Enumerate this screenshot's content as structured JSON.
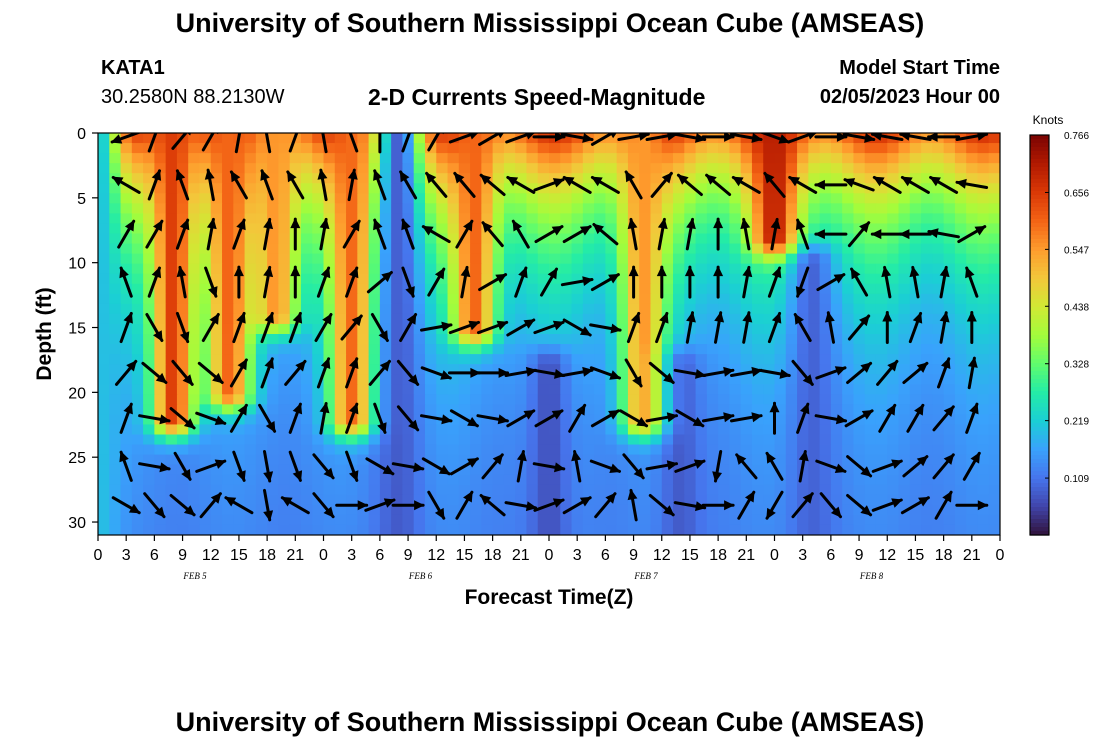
{
  "header": {
    "title": "University of Southern Mississippi Ocean Cube (AMSEAS)",
    "station_id": "KATA1",
    "station_coords": "30.2580N  88.2130W",
    "plot_title": "2-D Currents Speed-Magnitude",
    "model_start_label": "Model Start Time",
    "model_start_value": "02/05/2023 Hour 00"
  },
  "footer": {
    "title": "University of Southern Mississippi Ocean Cube (AMSEAS)"
  },
  "chart_data": {
    "type": "heatmap",
    "xlabel": "Forecast Time(Z)",
    "ylabel": "Depth (ft)",
    "xlim": [
      0,
      96
    ],
    "ylim": [
      31,
      0
    ],
    "x_tick_labels": [
      "0",
      "3",
      "6",
      "9",
      "12",
      "15",
      "18",
      "21",
      "0",
      "3",
      "6",
      "9",
      "12",
      "15",
      "18",
      "21",
      "0",
      "3",
      "6",
      "9",
      "12",
      "15",
      "18",
      "21",
      "0",
      "3",
      "6",
      "9",
      "12",
      "15",
      "18",
      "21",
      "0"
    ],
    "y_ticks": [
      0,
      5,
      10,
      15,
      20,
      25,
      30
    ],
    "y_tick_labels": [
      "0",
      "5",
      "10",
      "15",
      "20",
      "25",
      "30"
    ],
    "day_labels": [
      {
        "label": "FEB 5",
        "hour": 10
      },
      {
        "label": "FEB 6",
        "hour": 34
      },
      {
        "label": "FEB 7",
        "hour": 58
      },
      {
        "label": "FEB 8",
        "hour": 82
      }
    ],
    "colorbar": {
      "title": "Knots",
      "min": 0.0,
      "max": 0.766,
      "tick_values": [
        0.766,
        0.656,
        0.547,
        0.438,
        0.328,
        0.219,
        0.109
      ],
      "tick_labels": [
        "0.766",
        "0.656",
        "0.547",
        "0.438",
        "0.328",
        "0.219",
        "0.109"
      ],
      "colors": [
        "#30123b",
        "#4145ab",
        "#4675ed",
        "#39a2fc",
        "#1bcfd4",
        "#24eca6",
        "#61fc6c",
        "#a4fc3b",
        "#d1e834",
        "#f3c63a",
        "#fe9b2d",
        "#f36315",
        "#d93806",
        "#b11901",
        "#7a0402"
      ]
    },
    "speed_features": [
      {
        "hour": 0,
        "depth_from": 0,
        "depth_to": 31,
        "speed": 0.2
      },
      {
        "hour": 8,
        "depth_from": 0,
        "depth_to": 22,
        "speed": 0.65
      },
      {
        "hour": 14,
        "depth_from": 0,
        "depth_to": 20,
        "speed": 0.6
      },
      {
        "hour": 19,
        "depth_from": 0,
        "depth_to": 14,
        "speed": 0.55
      },
      {
        "hour": 27,
        "depth_from": 0,
        "depth_to": 22,
        "speed": 0.6
      },
      {
        "hour": 32,
        "depth_from": 0,
        "depth_to": 31,
        "speed": 0.08
      },
      {
        "hour": 40,
        "depth_from": 0,
        "depth_to": 15,
        "speed": 0.6
      },
      {
        "hour": 58,
        "depth_from": 0,
        "depth_to": 22,
        "speed": 0.55
      },
      {
        "hour": 72,
        "depth_from": 0,
        "depth_to": 8,
        "speed": 0.7
      },
      {
        "hour": 76,
        "depth_from": 10,
        "depth_to": 31,
        "speed": 0.09
      },
      {
        "hour": 62,
        "depth_from": 18,
        "depth_to": 31,
        "speed": 0.08
      },
      {
        "hour": 48,
        "depth_from": 18,
        "depth_to": 31,
        "speed": 0.07
      }
    ],
    "vector_field": {
      "hours": [
        3,
        6,
        9,
        12,
        15,
        18,
        21,
        24,
        27,
        30,
        33,
        36,
        39,
        42,
        45,
        48,
        51,
        54,
        57,
        60,
        63,
        66,
        69,
        72,
        75,
        78,
        81,
        84,
        87,
        90,
        93
      ],
      "depths": [
        0.3,
        4,
        7.8,
        11.5,
        15,
        18.5,
        22,
        25.7,
        28.7
      ],
      "directions_deg": [
        [
          250,
          20,
          40,
          30,
          10,
          350,
          20,
          350,
          340,
          0,
          20,
          30,
          70,
          60,
          70,
          90,
          100,
          60,
          80,
          80,
          100,
          90,
          100,
          110,
          70,
          90,
          100,
          280,
          280,
          270,
          80
        ],
        [
          300,
          20,
          340,
          350,
          330,
          340,
          330,
          350,
          10,
          340,
          330,
          320,
          320,
          310,
          300,
          70,
          300,
          300,
          330,
          40,
          310,
          310,
          300,
          320,
          300,
          270,
          290,
          300,
          300,
          300,
          280
        ],
        [
          30,
          30,
          20,
          10,
          20,
          10,
          360,
          10,
          30,
          340,
          340,
          300,
          30,
          320,
          330,
          60,
          60,
          310,
          350,
          10,
          10,
          0,
          350,
          10,
          340,
          270,
          40,
          270,
          270,
          280,
          60
        ],
        [
          340,
          20,
          350,
          160,
          0,
          10,
          0,
          20,
          20,
          50,
          160,
          30,
          10,
          60,
          20,
          30,
          80,
          60,
          0,
          0,
          0,
          0,
          10,
          20,
          200,
          60,
          330,
          350,
          350,
          10,
          340
        ],
        [
          20,
          150,
          160,
          30,
          20,
          20,
          20,
          30,
          40,
          150,
          30,
          80,
          70,
          70,
          60,
          70,
          120,
          100,
          20,
          20,
          10,
          10,
          10,
          20,
          330,
          350,
          40,
          0,
          20,
          10,
          0
        ],
        [
          40,
          130,
          140,
          130,
          30,
          20,
          40,
          20,
          20,
          40,
          140,
          110,
          90,
          90,
          80,
          100,
          80,
          110,
          150,
          130,
          100,
          80,
          80,
          100,
          140,
          70,
          50,
          40,
          50,
          20,
          10
        ],
        [
          20,
          100,
          130,
          110,
          30,
          150,
          20,
          10,
          20,
          160,
          140,
          100,
          120,
          100,
          60,
          60,
          30,
          60,
          120,
          80,
          120,
          80,
          80,
          0,
          20,
          100,
          60,
          30,
          30,
          40,
          20
        ],
        [
          340,
          100,
          150,
          70,
          160,
          170,
          160,
          140,
          160,
          120,
          100,
          120,
          60,
          40,
          10,
          100,
          350,
          110,
          140,
          80,
          70,
          190,
          320,
          330,
          10,
          110,
          130,
          70,
          50,
          40,
          30
        ],
        [
          120,
          140,
          130,
          40,
          300,
          170,
          300,
          140,
          90,
          70,
          90,
          150,
          30,
          310,
          100,
          70,
          60,
          40,
          350,
          130,
          100,
          90,
          30,
          210,
          40,
          140,
          130,
          70,
          60,
          30,
          90
        ]
      ]
    }
  }
}
